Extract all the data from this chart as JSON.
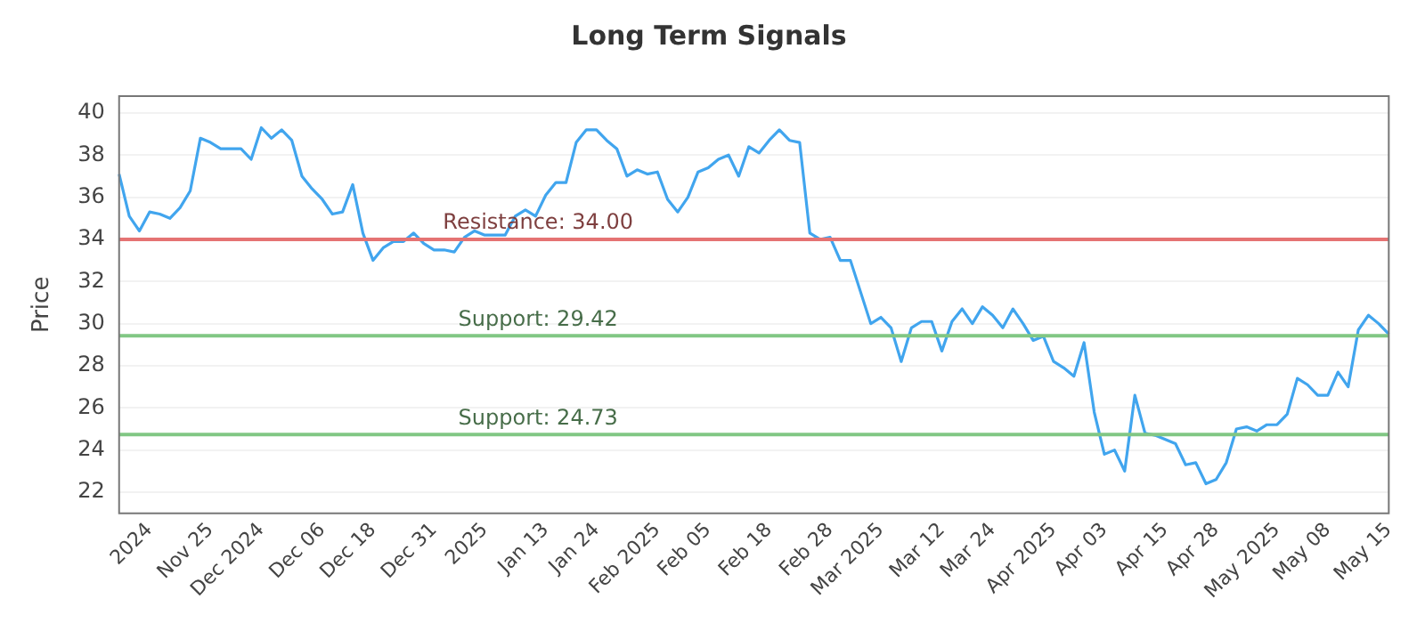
{
  "chart_data": {
    "type": "line",
    "title": "Long Term Signals",
    "ylabel": "Price",
    "categories": [
      null,
      null,
      null,
      "2024",
      null,
      null,
      null,
      null,
      null,
      "Nov 25",
      null,
      null,
      null,
      null,
      "Dec 2024",
      null,
      null,
      null,
      null,
      null,
      "Dec 06",
      null,
      null,
      null,
      null,
      "Dec 18",
      null,
      null,
      null,
      null,
      null,
      "Dec 31",
      null,
      null,
      null,
      null,
      "2025",
      null,
      null,
      null,
      null,
      null,
      "Jan 13",
      null,
      null,
      null,
      null,
      "Jan 24",
      null,
      null,
      null,
      null,
      null,
      "Feb 2025",
      null,
      null,
      null,
      null,
      "Feb 05",
      null,
      null,
      null,
      null,
      null,
      "Feb 18",
      null,
      null,
      null,
      null,
      null,
      "Feb 28",
      null,
      null,
      null,
      null,
      "Mar 2025",
      null,
      null,
      null,
      null,
      null,
      "Mar 12",
      null,
      null,
      null,
      null,
      "Mar 24",
      null,
      null,
      null,
      null,
      null,
      "Apr 2025",
      null,
      null,
      null,
      null,
      "Apr 03",
      null,
      null,
      null,
      null,
      null,
      "Apr 15",
      null,
      null,
      null,
      null,
      "Apr 28",
      null,
      null,
      null,
      null,
      null,
      "May 2025",
      null,
      null,
      null,
      null,
      "May 08",
      null,
      null,
      null,
      null,
      null,
      "May 15"
    ],
    "series": [
      {
        "color": "#41a5ee",
        "values": [
          37.1,
          35.1,
          34.4,
          35.3,
          35.2,
          35.0,
          35.5,
          36.3,
          38.8,
          38.6,
          38.3,
          38.3,
          38.3,
          37.8,
          39.3,
          38.8,
          39.2,
          38.7,
          37.0,
          36.4,
          35.9,
          35.2,
          35.3,
          36.6,
          34.3,
          33.0,
          33.6,
          33.9,
          33.9,
          34.3,
          33.8,
          33.5,
          33.5,
          33.4,
          34.1,
          34.4,
          34.2,
          34.2,
          34.2,
          35.1,
          35.4,
          35.1,
          36.1,
          36.7,
          36.7,
          38.6,
          39.2,
          39.2,
          38.7,
          38.3,
          37.0,
          37.3,
          37.1,
          37.2,
          35.9,
          35.3,
          36.0,
          37.2,
          37.4,
          37.8,
          38.0,
          37.0,
          38.4,
          38.1,
          38.7,
          39.2,
          38.7,
          38.6,
          34.3,
          34.0,
          34.1,
          33.0,
          33.0,
          31.5,
          30.0,
          30.3,
          29.8,
          28.2,
          29.8,
          30.1,
          30.1,
          28.7,
          30.1,
          30.7,
          30.0,
          30.8,
          30.4,
          29.8,
          30.7,
          30.0,
          29.2,
          29.4,
          28.2,
          27.9,
          27.5,
          29.1,
          25.8,
          23.8,
          24.0,
          23.0,
          26.6,
          24.8,
          24.7,
          24.5,
          24.3,
          23.3,
          23.4,
          22.4,
          22.6,
          23.4,
          25.0,
          25.1,
          24.9,
          25.2,
          25.2,
          25.7,
          27.4,
          27.1,
          26.6,
          26.6,
          27.7,
          27.0,
          29.7,
          30.4,
          30.0,
          29.5
        ]
      }
    ],
    "ylim": [
      21,
      40.8
    ],
    "yticks": [
      22,
      24,
      26,
      28,
      30,
      32,
      34,
      36,
      38,
      40
    ],
    "grid": "y",
    "legend": false,
    "marker": "none",
    "line_style": "solid",
    "ref_lines": [
      {
        "axis": "y",
        "value": 34.0,
        "label": "Resistance: 34.00",
        "color": "#e57373"
      },
      {
        "axis": "y",
        "value": 29.42,
        "label": "Support: 29.42",
        "color": "#81c784"
      },
      {
        "axis": "y",
        "value": 24.73,
        "label": "Support: 24.73",
        "color": "#81c784"
      }
    ]
  }
}
